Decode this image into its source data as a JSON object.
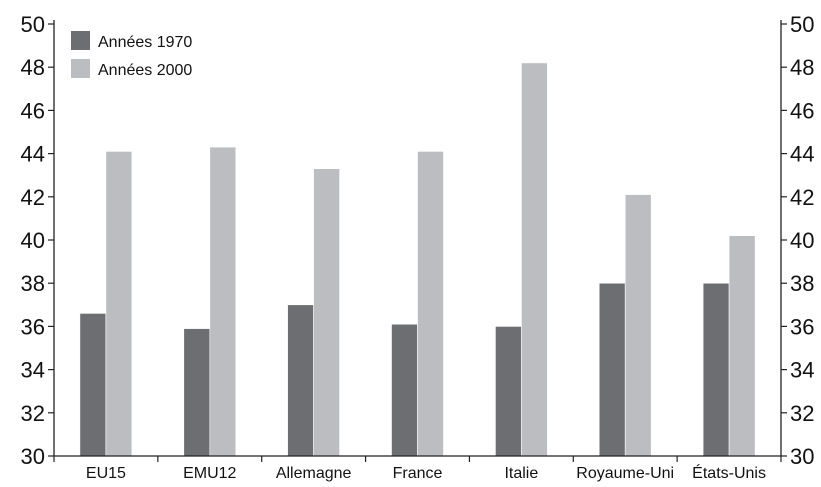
{
  "chart_data": {
    "type": "bar",
    "categories": [
      "EU15",
      "EMU12",
      "Allemagne",
      "France",
      "Italie",
      "Royaume-Uni",
      "États-Unis"
    ],
    "series": [
      {
        "name": "Années 1970",
        "color": "#6d6e72",
        "values": [
          36.6,
          35.9,
          37.0,
          36.1,
          36.0,
          38.0,
          38.0
        ]
      },
      {
        "name": "Années 2000",
        "color": "#bcbdc1",
        "values": [
          44.1,
          44.3,
          43.3,
          44.1,
          48.2,
          42.1,
          40.2
        ]
      }
    ],
    "ylim": [
      30,
      50
    ],
    "yticks": [
      30,
      32,
      34,
      36,
      38,
      40,
      42,
      44,
      46,
      48,
      50
    ],
    "y_axes": [
      "left",
      "right"
    ],
    "legend_position": "top-left",
    "grid": false
  }
}
